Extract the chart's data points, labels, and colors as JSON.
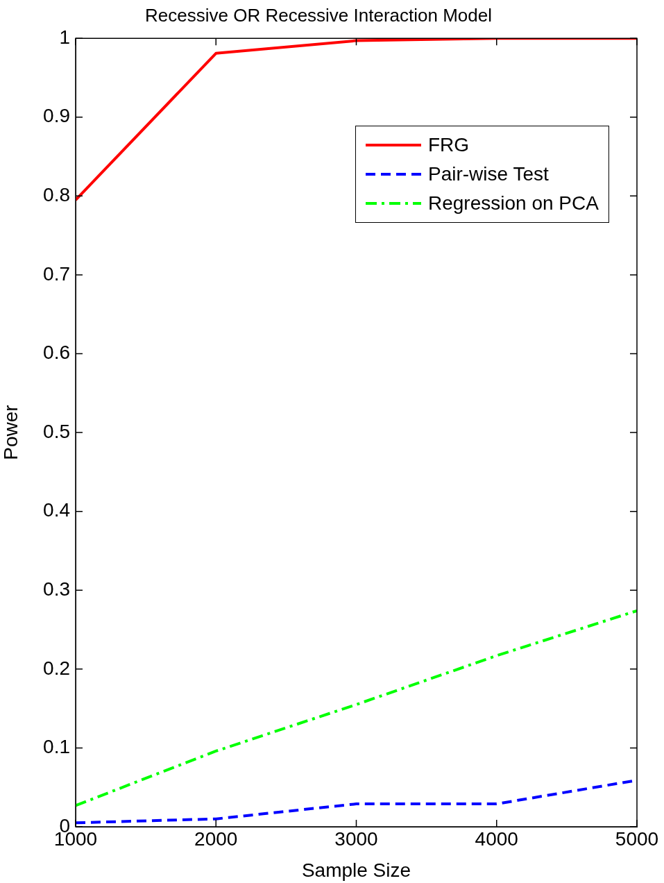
{
  "chart_data": {
    "type": "line",
    "title": "Recessive OR Recessive Interaction Model",
    "xlabel": "Sample Size",
    "ylabel": "Power",
    "x": [
      1000,
      2000,
      3000,
      4000,
      5000
    ],
    "series": [
      {
        "name": "FRG",
        "color": "#ff0000",
        "line_style": "solid",
        "values": [
          0.795,
          0.981,
          0.997,
          1.0,
          1.0
        ]
      },
      {
        "name": "Pair-wise Test",
        "color": "#0000ff",
        "line_style": "dashed",
        "values": [
          0.005,
          0.01,
          0.029,
          0.029,
          0.059
        ]
      },
      {
        "name": "Regression on PCA",
        "color": "#00ff00",
        "line_style": "dashdot",
        "values": [
          0.027,
          0.096,
          0.155,
          0.217,
          0.274
        ]
      }
    ],
    "xlim": [
      1000,
      5000
    ],
    "xticks": [
      1000,
      2000,
      3000,
      4000,
      5000
    ],
    "ylim": [
      0,
      1
    ],
    "yticks": [
      0,
      0.1,
      0.2,
      0.3,
      0.4,
      0.5,
      0.6,
      0.7,
      0.8,
      0.9,
      1
    ],
    "grid": false,
    "legend": "top right",
    "marker": "none"
  }
}
